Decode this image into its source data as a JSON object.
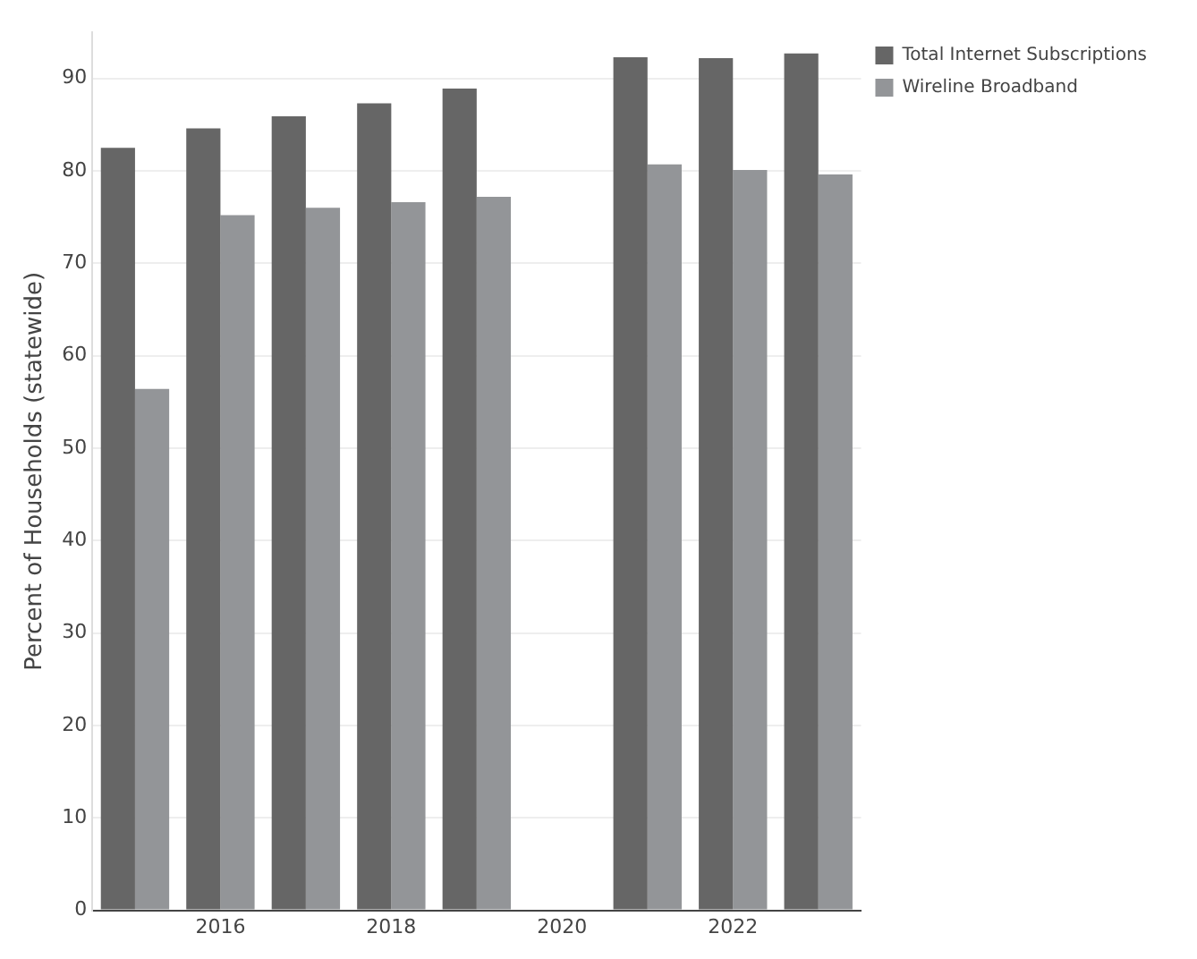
{
  "chart_data": {
    "type": "bar",
    "x": [
      2015,
      2016,
      2017,
      2018,
      2019,
      2020,
      2021,
      2022,
      2023
    ],
    "series": [
      {
        "name": "Total Internet Subscriptions",
        "color": "#666666",
        "values": [
          82.5,
          84.6,
          85.9,
          87.3,
          88.9,
          null,
          92.3,
          92.2,
          92.7
        ]
      },
      {
        "name": "Wireline Broadband",
        "color": "#939598",
        "values": [
          56.4,
          75.2,
          76.0,
          76.6,
          77.2,
          null,
          80.7,
          80.1,
          79.6
        ]
      }
    ],
    "ylabel": "Percent of Households (statewide)",
    "xlim": [
      2014.5,
      2023.5
    ],
    "xticks": [
      2016,
      2018,
      2020,
      2022
    ],
    "ylim": [
      0,
      95
    ],
    "yticks": [
      0,
      10,
      20,
      30,
      40,
      50,
      60,
      70,
      80,
      90
    ],
    "grid": "y",
    "legend": "top right"
  }
}
